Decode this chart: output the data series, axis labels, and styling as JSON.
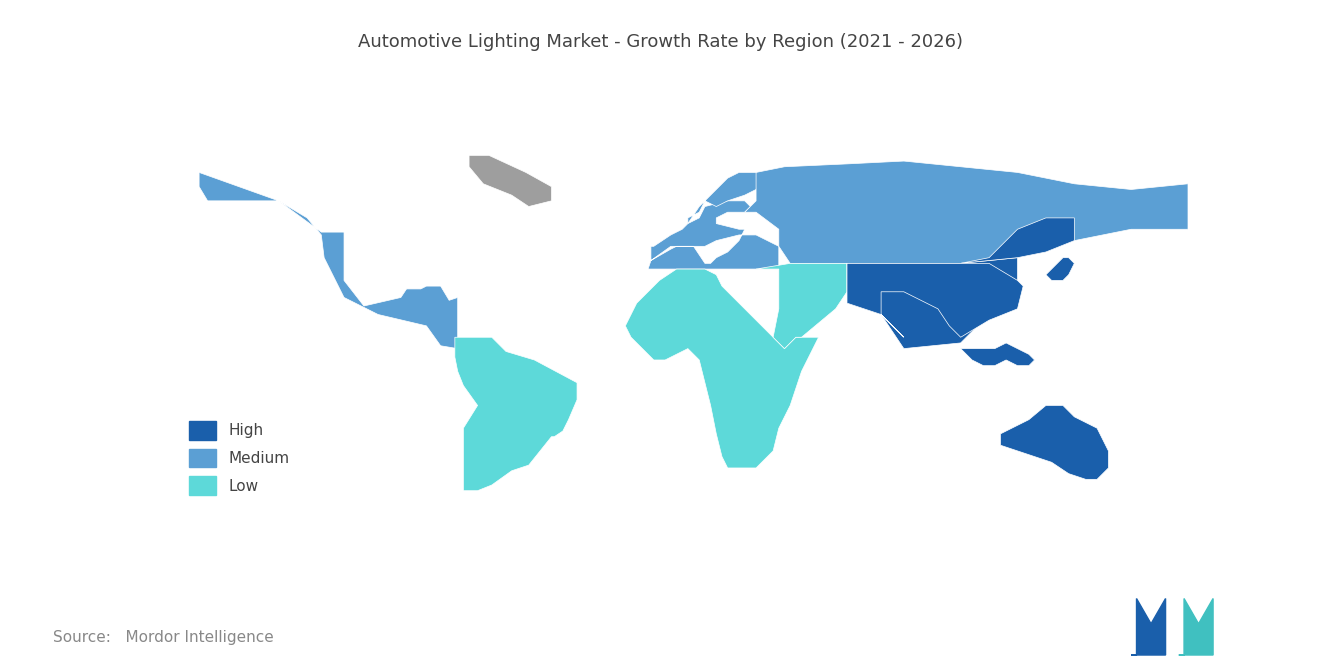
{
  "title": "Automotive Lighting Market - Growth Rate by Region (2021 - 2026)",
  "title_fontsize": 13,
  "title_color": "#444444",
  "background_color": "#ffffff",
  "legend_entries": [
    "High",
    "Medium",
    "Low"
  ],
  "legend_colors": [
    "#1A5FAB",
    "#5B9FD4",
    "#5DD9D9"
  ],
  "source_text": "Source:   Mordor Intelligence",
  "source_fontsize": 11,
  "source_color": "#888888",
  "color_high": "#1A5FAB",
  "color_medium": "#5B9FD4",
  "color_low": "#5DD9D9",
  "color_nodata": "#9E9E9E",
  "color_ocean": "#ffffff",
  "edge_color": "#ffffff",
  "edge_width": 0.5
}
